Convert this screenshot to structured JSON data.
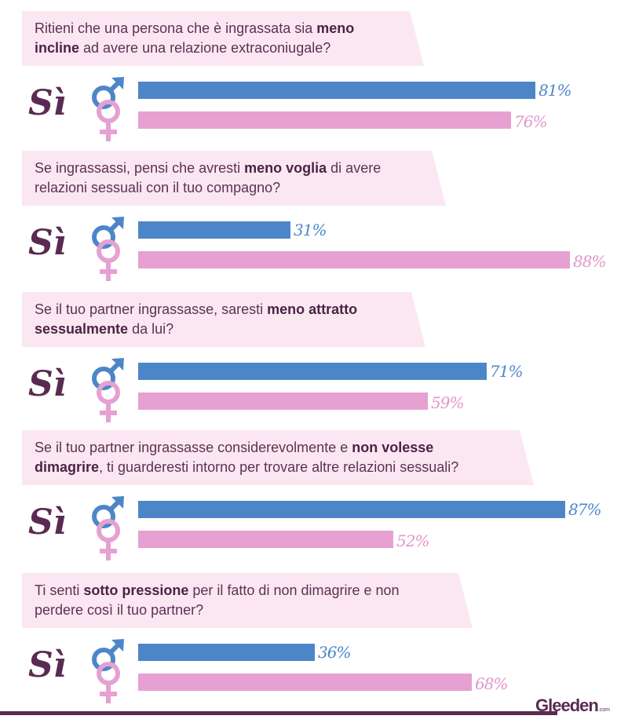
{
  "questions": [
    {
      "parts": [
        {
          "t": "Ritieni che una persona che è ingrassata sia ",
          "b": false
        },
        {
          "t": "meno",
          "b": true
        },
        {
          "br": true
        },
        {
          "t": "incline",
          "b": true
        },
        {
          "t": " ad avere una relazione extraconiugale?",
          "b": false
        }
      ],
      "banner_width": 512
    },
    {
      "parts": [
        {
          "t": "Se ingrassassi, pensi che avresti ",
          "b": false
        },
        {
          "t": "meno voglia",
          "b": true
        },
        {
          "t": " di avere",
          "b": false
        },
        {
          "br": true
        },
        {
          "t": "relazioni sessuali con il tuo compagno?",
          "b": false
        }
      ],
      "banner_width": 540
    },
    {
      "parts": [
        {
          "t": "Se il tuo partner ingrassasse, saresti ",
          "b": false
        },
        {
          "t": "meno attratto",
          "b": true
        },
        {
          "br": true
        },
        {
          "t": "sessualmente",
          "b": true
        },
        {
          "t": " da lui?",
          "b": false
        }
      ],
      "banner_width": 514
    },
    {
      "parts": [
        {
          "t": "Se il tuo partner ingrassasse considerevolmente e ",
          "b": false
        },
        {
          "t": "non volesse",
          "b": true
        },
        {
          "br": true
        },
        {
          "t": "dimagrire",
          "b": true
        },
        {
          "t": ", ti guarderesti intorno per trovare altre relazioni sessuali?",
          "b": false
        }
      ],
      "banner_width": 652
    },
    {
      "parts": [
        {
          "t": "Ti senti ",
          "b": false
        },
        {
          "t": "sotto pressione",
          "b": true
        },
        {
          "t": " per il fatto di non dimagrire e non",
          "b": false
        },
        {
          "br": true
        },
        {
          "t": "perdere così il tuo partner?",
          "b": false
        }
      ],
      "banner_width": 574
    }
  ],
  "answer_label": "Sì",
  "colors": {
    "male": "#4d86c8",
    "female": "#e6a0d2",
    "banner": "#fbe7f2",
    "text": "#5a3350",
    "brand": "#5b2a52"
  },
  "logo": {
    "name": "Gleeden",
    "suffix": ".com"
  },
  "chart_data": {
    "type": "bar",
    "orientation": "horizontal",
    "categories": [
      "Ritieni che una persona che è ingrassata sia meno incline ad avere una relazione extraconiugale?",
      "Se ingrassassi, pensi che avresti meno voglia di avere relazioni sessuali con il tuo compagno?",
      "Se il tuo partner ingrassasse, saresti meno attratto sessualmente da lui?",
      "Se il tuo partner ingrassasse considerevolmente e non volesse dimagrire, ti guarderesti intorno per trovare altre relazioni sessuali?",
      "Ti senti sotto pressione per il fatto di non dimagrire e non perdere così il tuo partner?"
    ],
    "series": [
      {
        "values": [
          81,
          31,
          71,
          87,
          36
        ],
        "labels": [
          "81%",
          "31%",
          "71%",
          "87%",
          "36%"
        ]
      },
      {
        "values": [
          76,
          88,
          59,
          52,
          68
        ],
        "labels": [
          "76%",
          "88%",
          "59%",
          "52%",
          "68%"
        ]
      }
    ],
    "xlim": [
      0,
      100
    ],
    "grid": false
  }
}
